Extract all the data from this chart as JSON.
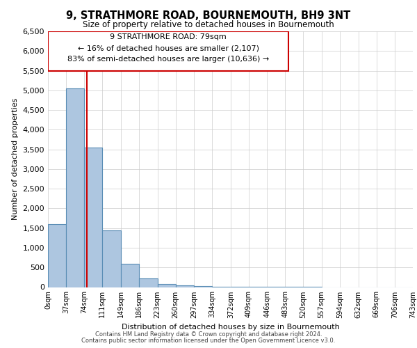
{
  "title": "9, STRATHMORE ROAD, BOURNEMOUTH, BH9 3NT",
  "subtitle": "Size of property relative to detached houses in Bournemouth",
  "xlabel": "Distribution of detached houses by size in Bournemouth",
  "ylabel": "Number of detached properties",
  "footnote1": "Contains HM Land Registry data © Crown copyright and database right 2024.",
  "footnote2": "Contains public sector information licensed under the Open Government Licence v3.0.",
  "annotation_line1": "9 STRATHMORE ROAD: 79sqm",
  "annotation_line2": "← 16% of detached houses are smaller (2,107)",
  "annotation_line3": "83% of semi-detached houses are larger (10,636) →",
  "property_size": 79,
  "bin_edges": [
    0,
    37,
    74,
    111,
    149,
    186,
    223,
    260,
    297,
    334,
    372,
    409,
    446,
    483,
    520,
    557,
    594,
    632,
    669,
    706,
    743
  ],
  "bin_labels": [
    "0sqm",
    "37sqm",
    "74sqm",
    "111sqm",
    "149sqm",
    "186sqm",
    "223sqm",
    "260sqm",
    "297sqm",
    "334sqm",
    "372sqm",
    "409sqm",
    "446sqm",
    "483sqm",
    "520sqm",
    "557sqm",
    "594sqm",
    "632sqm",
    "669sqm",
    "706sqm",
    "743sqm"
  ],
  "bar_heights": [
    1600,
    5050,
    3550,
    1450,
    600,
    220,
    80,
    40,
    20,
    10,
    5,
    3,
    2,
    1,
    1,
    0,
    0,
    0,
    0,
    0
  ],
  "bar_color_normal": "#adc6e0",
  "bar_edge_color": "#5a8db5",
  "marker_color": "#cc0000",
  "ylim": [
    0,
    6500
  ],
  "yticks": [
    0,
    500,
    1000,
    1500,
    2000,
    2500,
    3000,
    3500,
    4000,
    4500,
    5000,
    5500,
    6000,
    6500
  ],
  "annotation_box_color": "#cc0000",
  "grid_color": "#cccccc"
}
